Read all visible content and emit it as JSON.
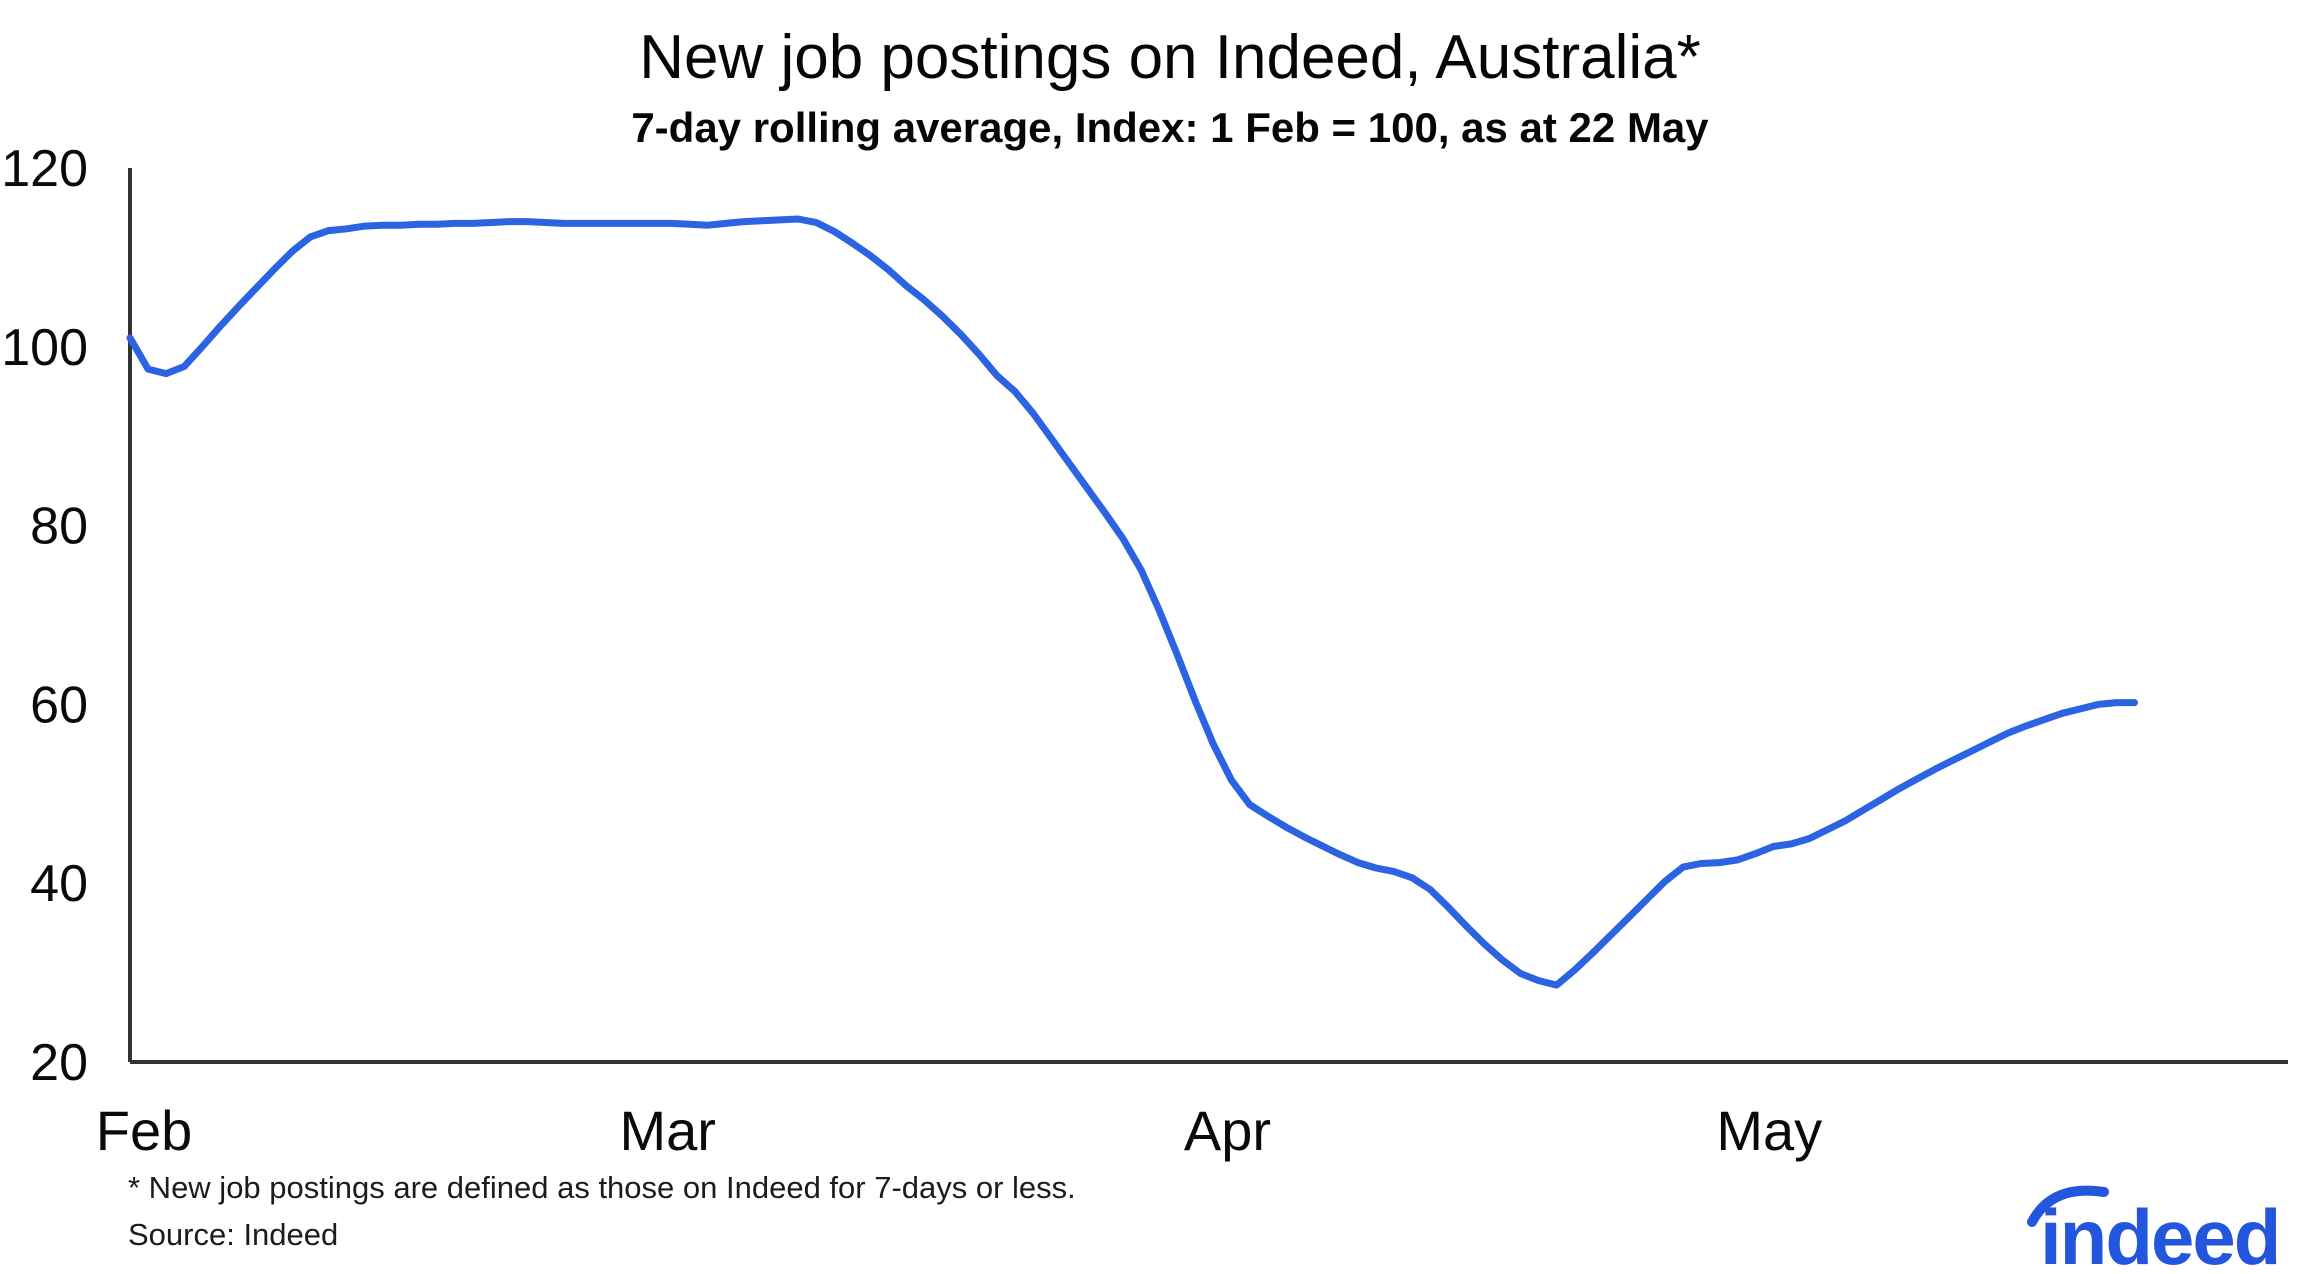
{
  "header": {
    "title": "New job postings on Indeed, Australia*",
    "subtitle": "7-day rolling average, Index: 1 Feb = 100, as at 22 May"
  },
  "footnotes": {
    "line1": "* New job postings are defined as those on Indeed for 7-days or less.",
    "line2": "Source: Indeed"
  },
  "footer": {
    "logo_text": "indeed"
  },
  "colors": {
    "line": "#2b63e3",
    "axis": "#333333",
    "text": "#0a0a0a",
    "logo": "#2456dd"
  },
  "chart_data": {
    "type": "line",
    "title": "New job postings on Indeed, Australia*",
    "subtitle": "7-day rolling average, Index: 1 Feb = 100, as at 22 May",
    "series_name": "New job postings index (7-day rolling average, 1 Feb = 100)",
    "x_unit": "days since 1 Feb",
    "x_step_days": 1,
    "x_range_labels": [
      "1 Feb",
      "22 May"
    ],
    "xlim_days": [
      0,
      119.5
    ],
    "ylim": [
      20,
      120
    ],
    "grid": false,
    "legend": null,
    "x_ticks": [
      {
        "day": 0,
        "label": "Feb"
      },
      {
        "day": 29,
        "label": "Mar"
      },
      {
        "day": 60,
        "label": "Apr"
      },
      {
        "day": 90,
        "label": "May"
      }
    ],
    "y_ticks": [
      20,
      40,
      60,
      80,
      100,
      120
    ],
    "values": [
      101,
      97.5,
      97,
      97.8,
      100,
      102.3,
      104.5,
      106.6,
      108.7,
      110.7,
      112.3,
      113,
      113.2,
      113.5,
      113.6,
      113.6,
      113.7,
      113.7,
      113.8,
      113.8,
      113.9,
      114,
      114,
      113.9,
      113.8,
      113.8,
      113.8,
      113.8,
      113.8,
      113.8,
      113.8,
      113.7,
      113.6,
      113.8,
      114,
      114.1,
      114.2,
      114.3,
      113.9,
      112.9,
      111.6,
      110.2,
      108.6,
      106.8,
      105.2,
      103.4,
      101.4,
      99.2,
      96.8,
      95,
      92.6,
      89.8,
      87,
      84.2,
      81.4,
      78.5,
      75,
      70.5,
      65.5,
      60.3,
      55.5,
      51.5,
      48.8,
      47.5,
      46.3,
      45.2,
      44.2,
      43.2,
      42.3,
      41.7,
      41.3,
      40.6,
      39.3,
      37.3,
      35.2,
      33.2,
      31.4,
      29.9,
      29.1,
      28.6,
      30.3,
      32.2,
      34.2,
      36.2,
      38.2,
      40.2,
      41.8,
      42.2,
      42.3,
      42.6,
      43.3,
      44.1,
      44.4,
      45,
      46,
      47,
      48.2,
      49.4,
      50.6,
      51.7,
      52.8,
      53.8,
      54.8,
      55.8,
      56.8,
      57.6,
      58.3,
      59,
      59.5,
      60,
      60.2,
      60.2
    ]
  }
}
